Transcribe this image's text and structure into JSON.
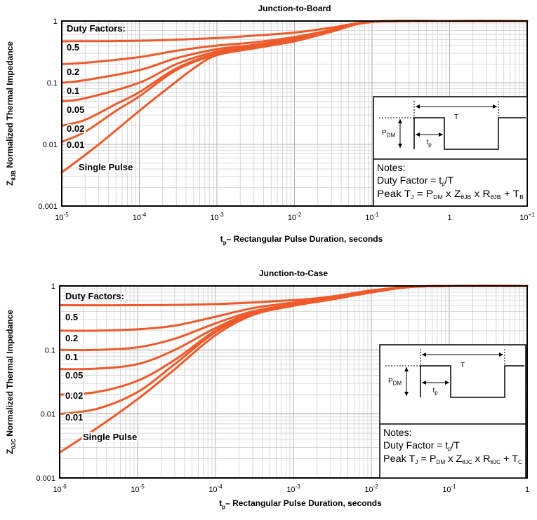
{
  "chart_data": [
    {
      "type": "line",
      "title": "Junction-to-Board",
      "xlabel": "t",
      "xlabel_sub": "p",
      "xlabel_rest": "– Rectangular Pulse Duration, seconds",
      "ylabel_main": "Z",
      "ylabel_sub": "θJB",
      "ylabel_rest": " Normalized Thermal Impedance",
      "x_scale": "log",
      "y_scale": "log",
      "xlim": [
        1e-05,
        10
      ],
      "ylim": [
        0.001,
        1
      ],
      "x_ticks": [
        {
          "value": 1e-05,
          "base": "10",
          "exp": "-5"
        },
        {
          "value": 0.0001,
          "base": "10",
          "exp": "-4"
        },
        {
          "value": 0.001,
          "base": "10",
          "exp": "-3"
        },
        {
          "value": 0.01,
          "base": "10",
          "exp": "-2"
        },
        {
          "value": 0.1,
          "base": "10",
          "exp": "-1"
        },
        {
          "value": 1,
          "base": "1",
          "exp": ""
        },
        {
          "value": 10,
          "base": "10",
          "exp": "+1"
        }
      ],
      "y_ticks": [
        {
          "value": 1,
          "label": "1"
        },
        {
          "value": 0.1,
          "label": "0.1"
        },
        {
          "value": 0.01,
          "label": "0.01"
        },
        {
          "value": 0.001,
          "label": "0.001"
        }
      ],
      "grid": true,
      "legend_header": "Duty Factors:",
      "series": [
        {
          "name": "0.5",
          "x": [
            1e-05,
            0.0001,
            0.001,
            0.003,
            0.01,
            0.03,
            0.1,
            1,
            10
          ],
          "y": [
            0.47,
            0.48,
            0.53,
            0.58,
            0.65,
            0.78,
            0.97,
            1,
            1
          ]
        },
        {
          "name": "0.2",
          "x": [
            1e-05,
            2e-05,
            0.0001,
            0.0003,
            0.001,
            0.003,
            0.01,
            0.03,
            0.1,
            1,
            10
          ],
          "y": [
            0.2,
            0.21,
            0.26,
            0.33,
            0.4,
            0.45,
            0.55,
            0.72,
            0.97,
            1,
            1
          ]
        },
        {
          "name": "0.1",
          "x": [
            1e-05,
            2e-05,
            0.0001,
            0.0003,
            0.001,
            0.003,
            0.01,
            0.03,
            0.1,
            1,
            10
          ],
          "y": [
            0.1,
            0.11,
            0.16,
            0.25,
            0.35,
            0.41,
            0.52,
            0.7,
            0.97,
            1,
            1
          ]
        },
        {
          "name": "0.05",
          "x": [
            1e-05,
            2e-05,
            0.0001,
            0.0003,
            0.001,
            0.003,
            0.01,
            0.03,
            0.1,
            1,
            10
          ],
          "y": [
            0.05,
            0.056,
            0.1,
            0.2,
            0.32,
            0.39,
            0.5,
            0.69,
            0.97,
            1,
            1
          ]
        },
        {
          "name": "0.02",
          "x": [
            1e-05,
            2e-05,
            5e-05,
            0.0001,
            0.0003,
            0.001,
            0.003,
            0.01,
            0.03,
            0.1,
            1,
            10
          ],
          "y": [
            0.02,
            0.025,
            0.045,
            0.07,
            0.17,
            0.3,
            0.38,
            0.49,
            0.68,
            0.97,
            1,
            1
          ]
        },
        {
          "name": "0.01",
          "x": [
            1e-05,
            2e-05,
            5e-05,
            0.0001,
            0.0003,
            0.001,
            0.003,
            0.01,
            0.03,
            0.1,
            1,
            10
          ],
          "y": [
            0.011,
            0.016,
            0.035,
            0.06,
            0.16,
            0.29,
            0.37,
            0.48,
            0.68,
            0.97,
            1,
            1
          ]
        },
        {
          "name": "Single Pulse",
          "x": [
            1e-05,
            3e-05,
            0.0001,
            0.0002,
            0.0005,
            0.001,
            0.003,
            0.01,
            0.03,
            0.1,
            1,
            10
          ],
          "y": [
            0.0035,
            0.01,
            0.035,
            0.07,
            0.17,
            0.28,
            0.36,
            0.47,
            0.67,
            0.97,
            1,
            1
          ]
        }
      ],
      "notes": {
        "header": "Notes:",
        "line1_pre": "Duty Factor = t",
        "line1_sub": "p",
        "line1_post": "/T",
        "line2_pre": "Peak T",
        "line2_s1": "J",
        "line2_m1": " = P",
        "line2_s2": "DM",
        "line2_m2": " x Z",
        "line2_s3": "θJB",
        "line2_m3": "  x R",
        "line2_s4": "θJB",
        "line2_m4": " + T",
        "line2_s5": "B",
        "diagram_T": "T",
        "diagram_P": "P",
        "diagram_P_sub": "DM",
        "diagram_t": "t",
        "diagram_t_sub": "p"
      },
      "line_color": "#ee5a2a"
    },
    {
      "type": "line",
      "title": "Junction-to-Case",
      "xlabel": "t",
      "xlabel_sub": "p",
      "xlabel_rest": "– Rectangular Pulse Duration, seconds",
      "ylabel_main": "Z",
      "ylabel_sub": "θJC",
      "ylabel_rest": " Normalized Thermal Impedance",
      "x_scale": "log",
      "y_scale": "log",
      "xlim": [
        1e-06,
        1
      ],
      "ylim": [
        0.001,
        1
      ],
      "x_ticks": [
        {
          "value": 1e-06,
          "base": "10",
          "exp": "-6"
        },
        {
          "value": 1e-05,
          "base": "10",
          "exp": "-5"
        },
        {
          "value": 0.0001,
          "base": "10",
          "exp": "-4"
        },
        {
          "value": 0.001,
          "base": "10",
          "exp": "-3"
        },
        {
          "value": 0.01,
          "base": "10",
          "exp": "-2"
        },
        {
          "value": 0.1,
          "base": "10",
          "exp": "-1"
        },
        {
          "value": 1,
          "base": "1",
          "exp": ""
        }
      ],
      "y_ticks": [
        {
          "value": 1,
          "label": "1"
        },
        {
          "value": 0.1,
          "label": "0.1"
        },
        {
          "value": 0.01,
          "label": "0.01"
        },
        {
          "value": 0.001,
          "label": "0.001"
        }
      ],
      "grid": true,
      "legend_header": "Duty Factors:",
      "series": [
        {
          "name": "0.5",
          "x": [
            1e-06,
            1e-05,
            0.0001,
            0.001,
            0.003,
            0.01,
            0.03,
            0.1,
            1
          ],
          "y": [
            0.5,
            0.5,
            0.52,
            0.6,
            0.68,
            0.85,
            0.97,
            1,
            1
          ]
        },
        {
          "name": "0.2",
          "x": [
            1e-06,
            3e-06,
            1e-05,
            3e-05,
            0.0001,
            0.0003,
            0.001,
            0.003,
            0.01,
            0.03,
            0.1,
            1
          ],
          "y": [
            0.2,
            0.2,
            0.21,
            0.24,
            0.33,
            0.45,
            0.55,
            0.65,
            0.82,
            0.96,
            1,
            1
          ]
        },
        {
          "name": "0.1",
          "x": [
            1e-06,
            3e-06,
            1e-05,
            3e-05,
            0.0001,
            0.0003,
            0.001,
            0.003,
            0.01,
            0.03,
            0.1,
            1
          ],
          "y": [
            0.1,
            0.1,
            0.11,
            0.15,
            0.26,
            0.4,
            0.52,
            0.64,
            0.81,
            0.96,
            1,
            1
          ]
        },
        {
          "name": "0.05",
          "x": [
            1e-06,
            3e-06,
            1e-05,
            3e-05,
            0.0001,
            0.0003,
            0.001,
            0.003,
            0.01,
            0.03,
            0.1,
            1
          ],
          "y": [
            0.05,
            0.051,
            0.06,
            0.1,
            0.22,
            0.38,
            0.51,
            0.63,
            0.81,
            0.96,
            1,
            1
          ]
        },
        {
          "name": "0.02",
          "x": [
            1e-06,
            3e-06,
            1e-05,
            3e-05,
            0.0001,
            0.0003,
            0.001,
            0.003,
            0.01,
            0.03,
            0.1,
            1
          ],
          "y": [
            0.02,
            0.022,
            0.033,
            0.07,
            0.2,
            0.37,
            0.5,
            0.62,
            0.8,
            0.96,
            1,
            1
          ]
        },
        {
          "name": "0.01",
          "x": [
            1e-06,
            3e-06,
            1e-05,
            3e-05,
            0.0001,
            0.0003,
            0.001,
            0.003,
            0.01,
            0.03,
            0.1,
            1
          ],
          "y": [
            0.01,
            0.012,
            0.022,
            0.06,
            0.19,
            0.36,
            0.5,
            0.62,
            0.8,
            0.96,
            1,
            1
          ]
        },
        {
          "name": "Single Pulse",
          "x": [
            1e-06,
            3e-06,
            1e-05,
            3e-05,
            0.0001,
            0.0003,
            0.001,
            0.003,
            0.01,
            0.03,
            0.1,
            1
          ],
          "y": [
            0.0025,
            0.006,
            0.017,
            0.05,
            0.17,
            0.35,
            0.49,
            0.61,
            0.79,
            0.96,
            1,
            1
          ]
        }
      ],
      "notes": {
        "header": "Notes:",
        "line1_pre": "Duty Factor = t",
        "line1_sub": "p",
        "line1_post": "/T",
        "line2_pre": "Peak T",
        "line2_s1": "J",
        "line2_m1": " = P",
        "line2_s2": "DM",
        "line2_m2": " x Z",
        "line2_s3": "θJC",
        "line2_m3": "  x R",
        "line2_s4": "θJC",
        "line2_m4": " + T",
        "line2_s5": "C",
        "diagram_T": "T",
        "diagram_P": "P",
        "diagram_P_sub": "DM",
        "diagram_t": "t",
        "diagram_t_sub": "p"
      },
      "line_color": "#ee5a2a"
    }
  ]
}
